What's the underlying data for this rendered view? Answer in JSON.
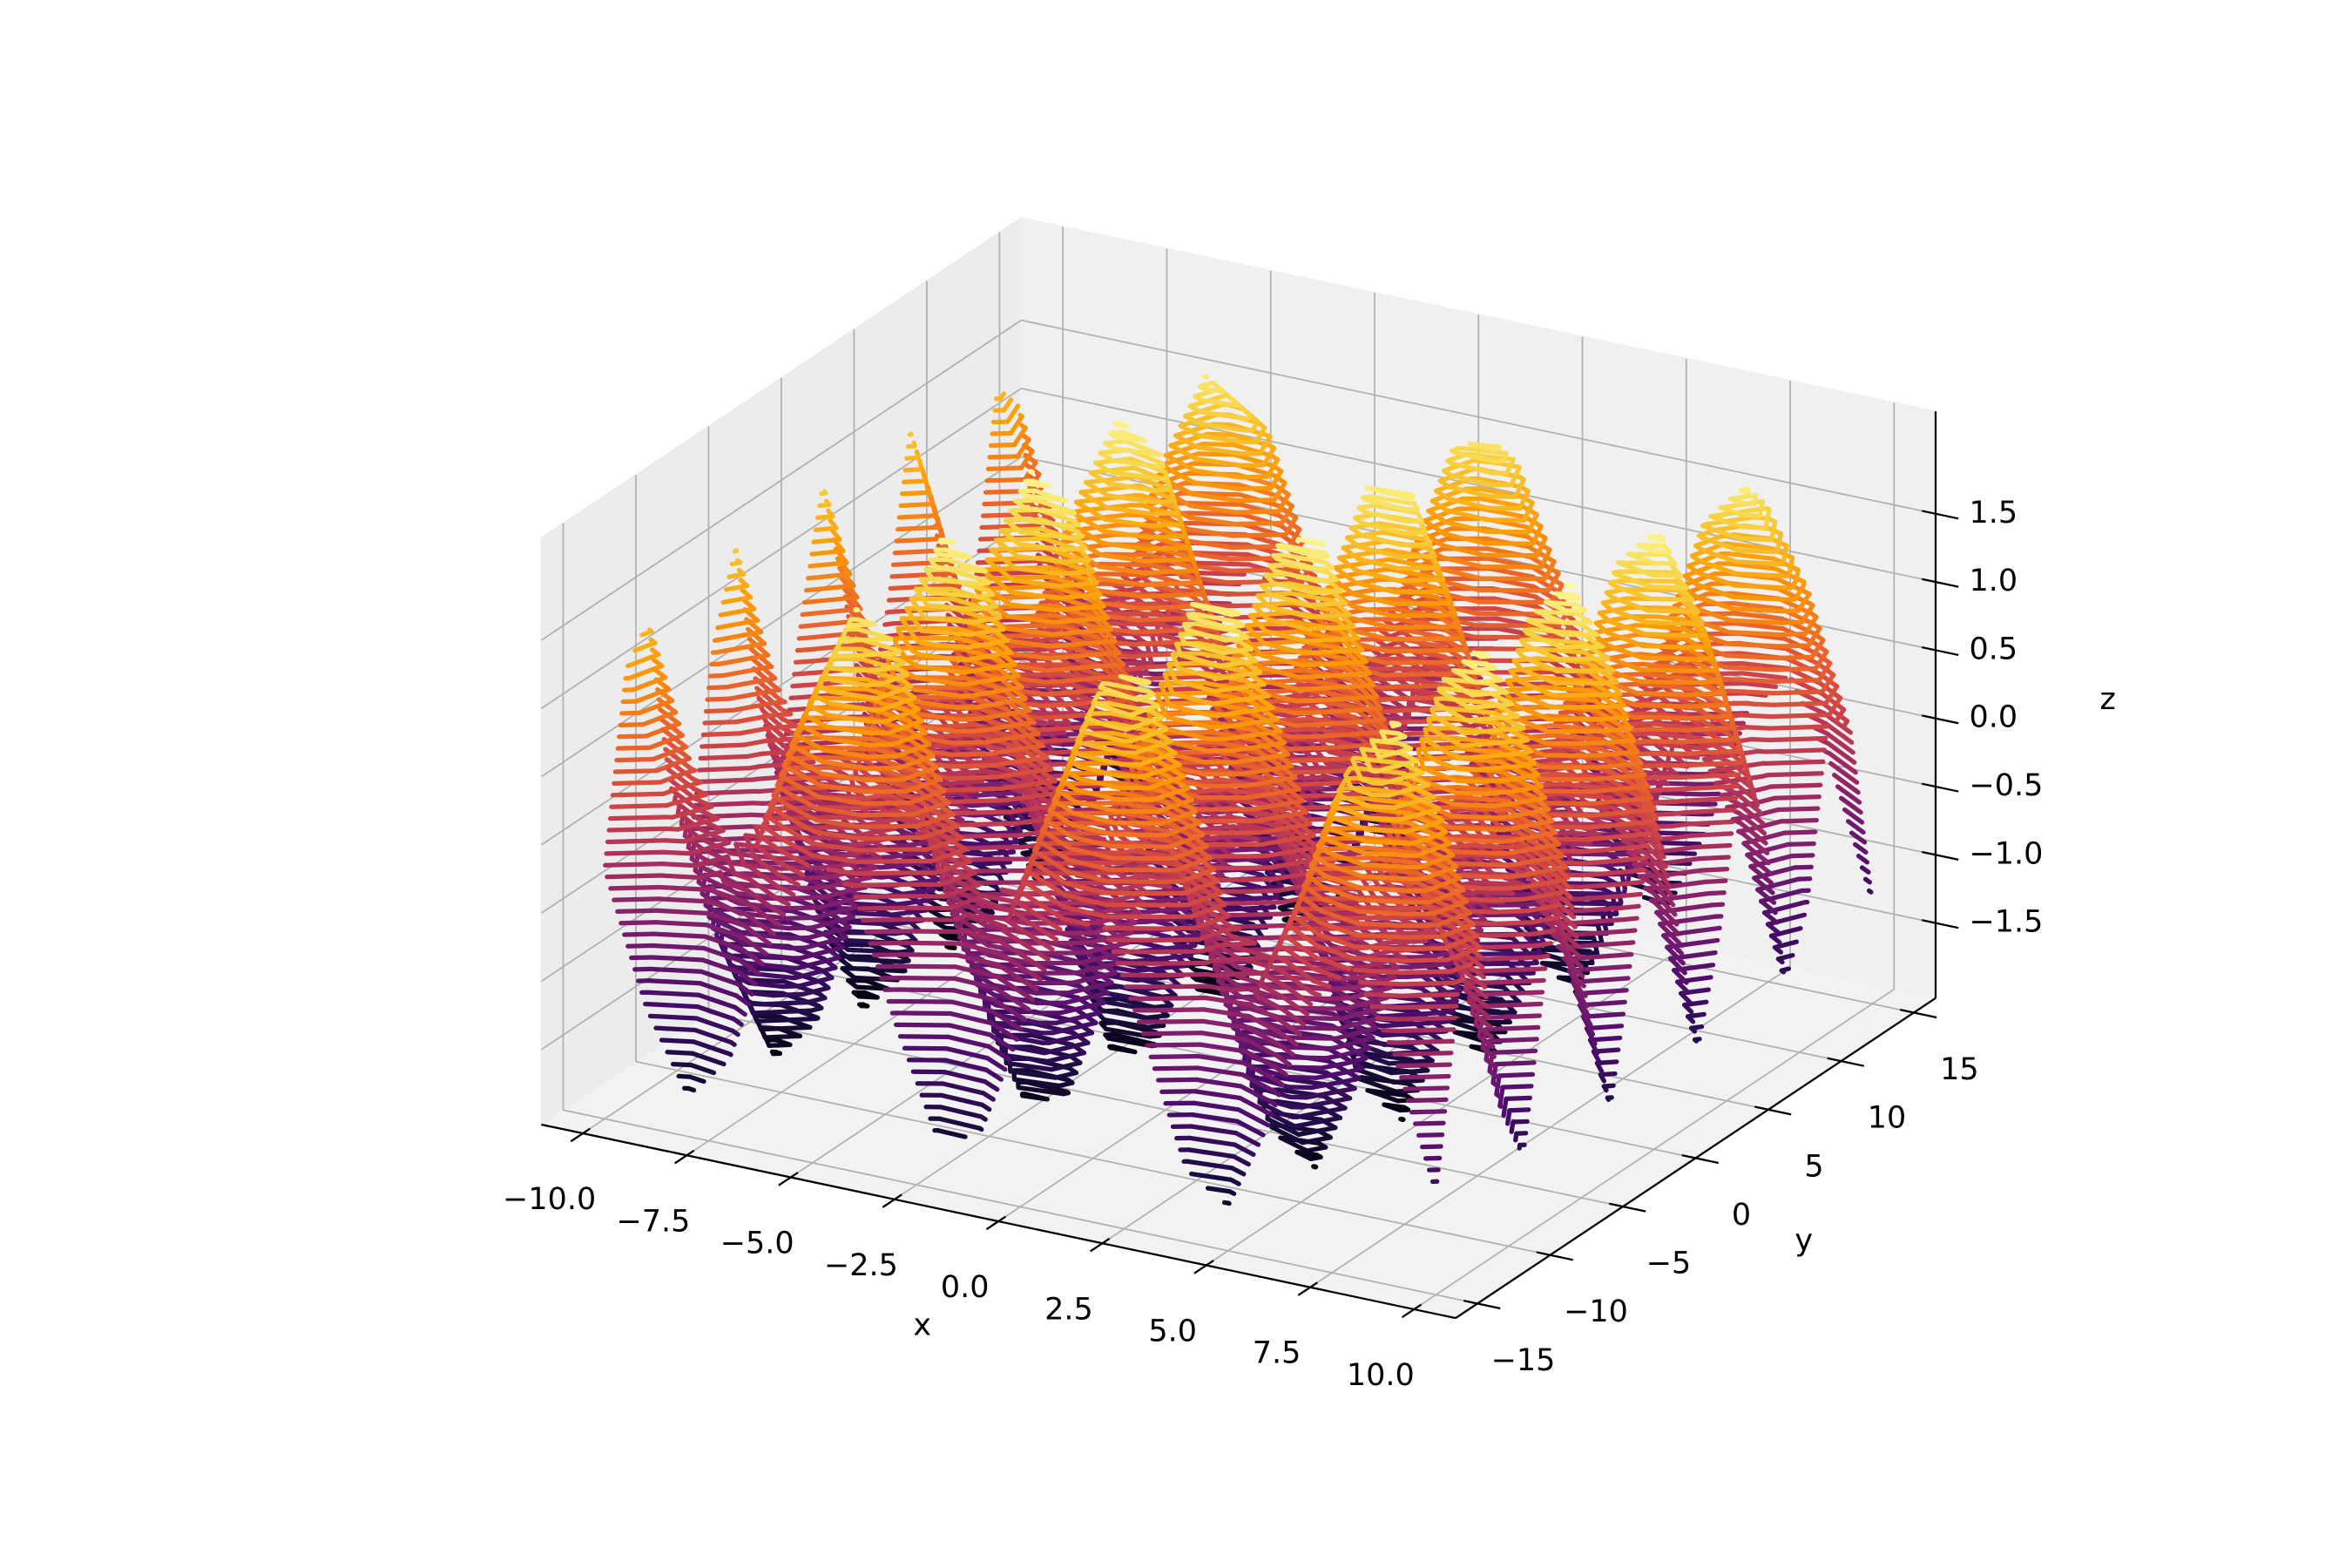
{
  "chart_data": {
    "type": "contour3d",
    "xlabel": "x",
    "ylabel": "y",
    "zlabel": "z",
    "x": [
      -10,
      -9,
      -8,
      -7,
      -6,
      -5,
      -4,
      -3,
      -2,
      -1,
      0,
      1,
      2,
      3,
      4,
      5,
      6,
      7,
      8,
      9,
      10
    ],
    "y": [
      -15,
      -13.5,
      -12,
      -10.5,
      -9,
      -7.5,
      -6,
      -4.5,
      -3,
      -1.5,
      0,
      1.5,
      3,
      4.5,
      6,
      7.5,
      9,
      10.5,
      12,
      13.5,
      15
    ],
    "z": [
      [
        -0.22,
        -1.17,
        -1.75,
        -1.42,
        -0.48,
        0.2,
        0,
        -0.9,
        -1.67,
        -1.6,
        -0.76,
        0.08,
        0.15,
        -0.62,
        -1.52,
        -1.72,
        -1.04,
        -0.1,
        0.23,
        -0.35,
        -1.3
      ],
      [
        1.14,
        0.18,
        -0.39,
        -0.06,
        0.87,
        1.55,
        1.35,
        0.45,
        -0.31,
        -0.25,
        0.6,
        1.44,
        1.5,
        0.74,
        -0.16,
        -0.36,
        0.32,
        1.25,
        1.58,
        1.01,
        0.05
      ],
      [
        1.39,
        0.43,
        -0.15,
        0.19,
        1.12,
        1.8,
        1.6,
        0.7,
        -0.07,
        0,
        0.84,
        1.69,
        1.75,
        0.99,
        0.09,
        -0.12,
        0.57,
        1.5,
        1.83,
        1.26,
        0.3
      ],
      [
        0.07,
        -0.89,
        -1.47,
        -1.13,
        -0.2,
        0.48,
        0.28,
        -0.62,
        -1.39,
        -1.32,
        -0.48,
        0.37,
        0.43,
        -0.34,
        -1.23,
        -1.44,
        -0.76,
        0.18,
        0.51,
        -0.06,
        -1.02
      ],
      [
        -0.37,
        -1.32,
        -1.9,
        -1.57,
        -0.63,
        0.05,
        -0.15,
        -1.05,
        -1.82,
        -1.75,
        -0.91,
        -0.07,
        0,
        -0.77,
        -1.67,
        -1.87,
        -1.19,
        -0.25,
        0.08,
        -0.5,
        -1.46
      ],
      [
        0.89,
        -0.07,
        -0.64,
        -0.31,
        0.63,
        1.31,
        1.1,
        0.21,
        -0.56,
        -0.49,
        0.35,
        1.19,
        1.26,
        0.49,
        -0.41,
        -0.61,
        0.07,
        1,
        1.34,
        0.76,
        -0.2
      ],
      [
        1.5,
        0.55,
        -0.03,
        0.3,
        1.24,
        1.92,
        1.72,
        0.82,
        0.05,
        0.12,
        0.96,
        1.8,
        1.87,
        1.1,
        0.2,
        0,
        0.68,
        1.62,
        1.95,
        1.37,
        0.42
      ],
      [
        0.33,
        -0.62,
        -1.2,
        -0.87,
        0.07,
        0.75,
        0.55,
        -0.35,
        -1.12,
        -1.05,
        -0.21,
        0.63,
        0.7,
        -0.07,
        -0.97,
        -1.17,
        -0.49,
        0.45,
        0.78,
        0.2,
        -0.76
      ],
      [
        -0.45,
        -1.4,
        -1.98,
        -1.65,
        -0.71,
        -0.03,
        -0.23,
        -1.13,
        -1.9,
        -1.83,
        -0.99,
        -0.15,
        -0.08,
        -0.85,
        -1.75,
        -1.95,
        -1.27,
        -0.33,
        0,
        -0.58,
        -1.53
      ],
      [
        0.62,
        -0.34,
        -0.92,
        -0.59,
        0.35,
        1.03,
        0.83,
        -0.07,
        -0.84,
        -0.77,
        0.07,
        0.91,
        0.98,
        0.21,
        -0.69,
        -0.89,
        -0.21,
        0.73,
        1.06,
        0.48,
        -0.47
      ],
      [
        1.54,
        0.59,
        0.01,
        0.34,
        1.28,
        1.96,
        1.76,
        0.86,
        0.09,
        0.16,
        1,
        1.84,
        1.91,
        1.14,
        0.24,
        0.04,
        0.72,
        1.66,
        1.99,
        1.41,
        0.46
      ],
      [
        0.62,
        -0.34,
        -0.92,
        -0.59,
        0.35,
        1.03,
        0.83,
        -0.07,
        -0.84,
        -0.77,
        0.07,
        0.91,
        0.98,
        0.21,
        -0.69,
        -0.89,
        -0.21,
        0.73,
        1.06,
        0.48,
        -0.47
      ],
      [
        -0.45,
        -1.4,
        -1.98,
        -1.65,
        -0.71,
        -0.03,
        -0.23,
        -1.13,
        -1.9,
        -1.83,
        -0.99,
        -0.15,
        -0.08,
        -0.85,
        -1.75,
        -1.95,
        -1.27,
        -0.33,
        0,
        -0.58,
        -1.53
      ],
      [
        0.33,
        -0.62,
        -1.2,
        -0.87,
        0.07,
        0.75,
        0.55,
        -0.35,
        -1.12,
        -1.05,
        -0.21,
        0.63,
        0.7,
        -0.07,
        -0.97,
        -1.17,
        -0.49,
        0.45,
        0.78,
        0.2,
        -0.76
      ],
      [
        1.5,
        0.55,
        -0.03,
        0.3,
        1.24,
        1.92,
        1.72,
        0.82,
        0.05,
        0.12,
        0.96,
        1.8,
        1.87,
        1.1,
        0.2,
        0,
        0.68,
        1.62,
        1.95,
        1.37,
        0.42
      ],
      [
        0.89,
        -0.07,
        -0.64,
        -0.31,
        0.63,
        1.31,
        1.1,
        0.21,
        -0.56,
        -0.49,
        0.35,
        1.19,
        1.26,
        0.49,
        -0.41,
        -0.61,
        0.07,
        1,
        1.34,
        0.76,
        -0.2
      ],
      [
        -0.37,
        -1.32,
        -1.9,
        -1.57,
        -0.63,
        0.05,
        -0.15,
        -1.05,
        -1.82,
        -1.75,
        -0.91,
        -0.07,
        0,
        -0.77,
        -1.67,
        -1.87,
        -1.19,
        -0.25,
        0.08,
        -0.5,
        -1.46
      ],
      [
        0.07,
        -0.89,
        -1.47,
        -1.13,
        -0.2,
        0.48,
        0.28,
        -0.62,
        -1.39,
        -1.32,
        -0.48,
        0.37,
        0.43,
        -0.34,
        -1.23,
        -1.44,
        -0.76,
        0.18,
        0.51,
        -0.06,
        -1.02
      ],
      [
        1.39,
        0.43,
        -0.15,
        0.19,
        1.12,
        1.8,
        1.6,
        0.7,
        -0.07,
        0,
        0.84,
        1.69,
        1.75,
        0.99,
        0.09,
        -0.12,
        0.57,
        1.5,
        1.83,
        1.26,
        0.3
      ],
      [
        1.14,
        0.18,
        -0.39,
        -0.06,
        0.87,
        1.55,
        1.35,
        0.45,
        -0.31,
        -0.25,
        0.6,
        1.44,
        1.5,
        0.74,
        -0.16,
        -0.36,
        0.32,
        1.25,
        1.58,
        1.01,
        0.05
      ],
      [
        -0.22,
        -1.17,
        -1.75,
        -1.42,
        -0.48,
        0.2,
        0,
        -0.9,
        -1.67,
        -1.6,
        -0.76,
        0.08,
        0.15,
        -0.62,
        -1.52,
        -1.72,
        -1.04,
        -0.1,
        0.23,
        -0.35,
        -1.3
      ]
    ],
    "levels": 50,
    "colormap": [
      "#000004",
      "#1b0c41",
      "#4a0c6b",
      "#781c6d",
      "#a52c60",
      "#cf4446",
      "#ed6925",
      "#fb9b06",
      "#f7d13d",
      "#fcffa4"
    ],
    "xlim": [
      -11,
      11
    ],
    "ylim": [
      -16.5,
      16.5
    ],
    "zlim": [
      -2.05,
      2.25
    ],
    "xticks": [
      {
        "value": -10,
        "label": "−10.0"
      },
      {
        "value": -7.5,
        "label": "−7.5"
      },
      {
        "value": -5,
        "label": "−5.0"
      },
      {
        "value": -2.5,
        "label": "−2.5"
      },
      {
        "value": 0,
        "label": "0.0"
      },
      2.5,
      {
        "value": 5,
        "label": "5.0"
      },
      7.5,
      {
        "value": 10,
        "label": "10.0"
      }
    ],
    "yticks": [
      {
        "value": -15,
        "label": "−15"
      },
      {
        "value": -10,
        "label": "−10"
      },
      {
        "value": -5,
        "label": "−5"
      },
      0,
      5,
      10,
      15
    ],
    "zticks": [
      {
        "value": -1.5,
        "label": "−1.5"
      },
      {
        "value": -1,
        "label": "−1.0"
      },
      {
        "value": -0.5,
        "label": "−0.5"
      },
      {
        "value": 0,
        "label": "0.0"
      },
      0.5,
      {
        "value": 1,
        "label": "1.0"
      },
      1.5
    ],
    "grid": true
  }
}
